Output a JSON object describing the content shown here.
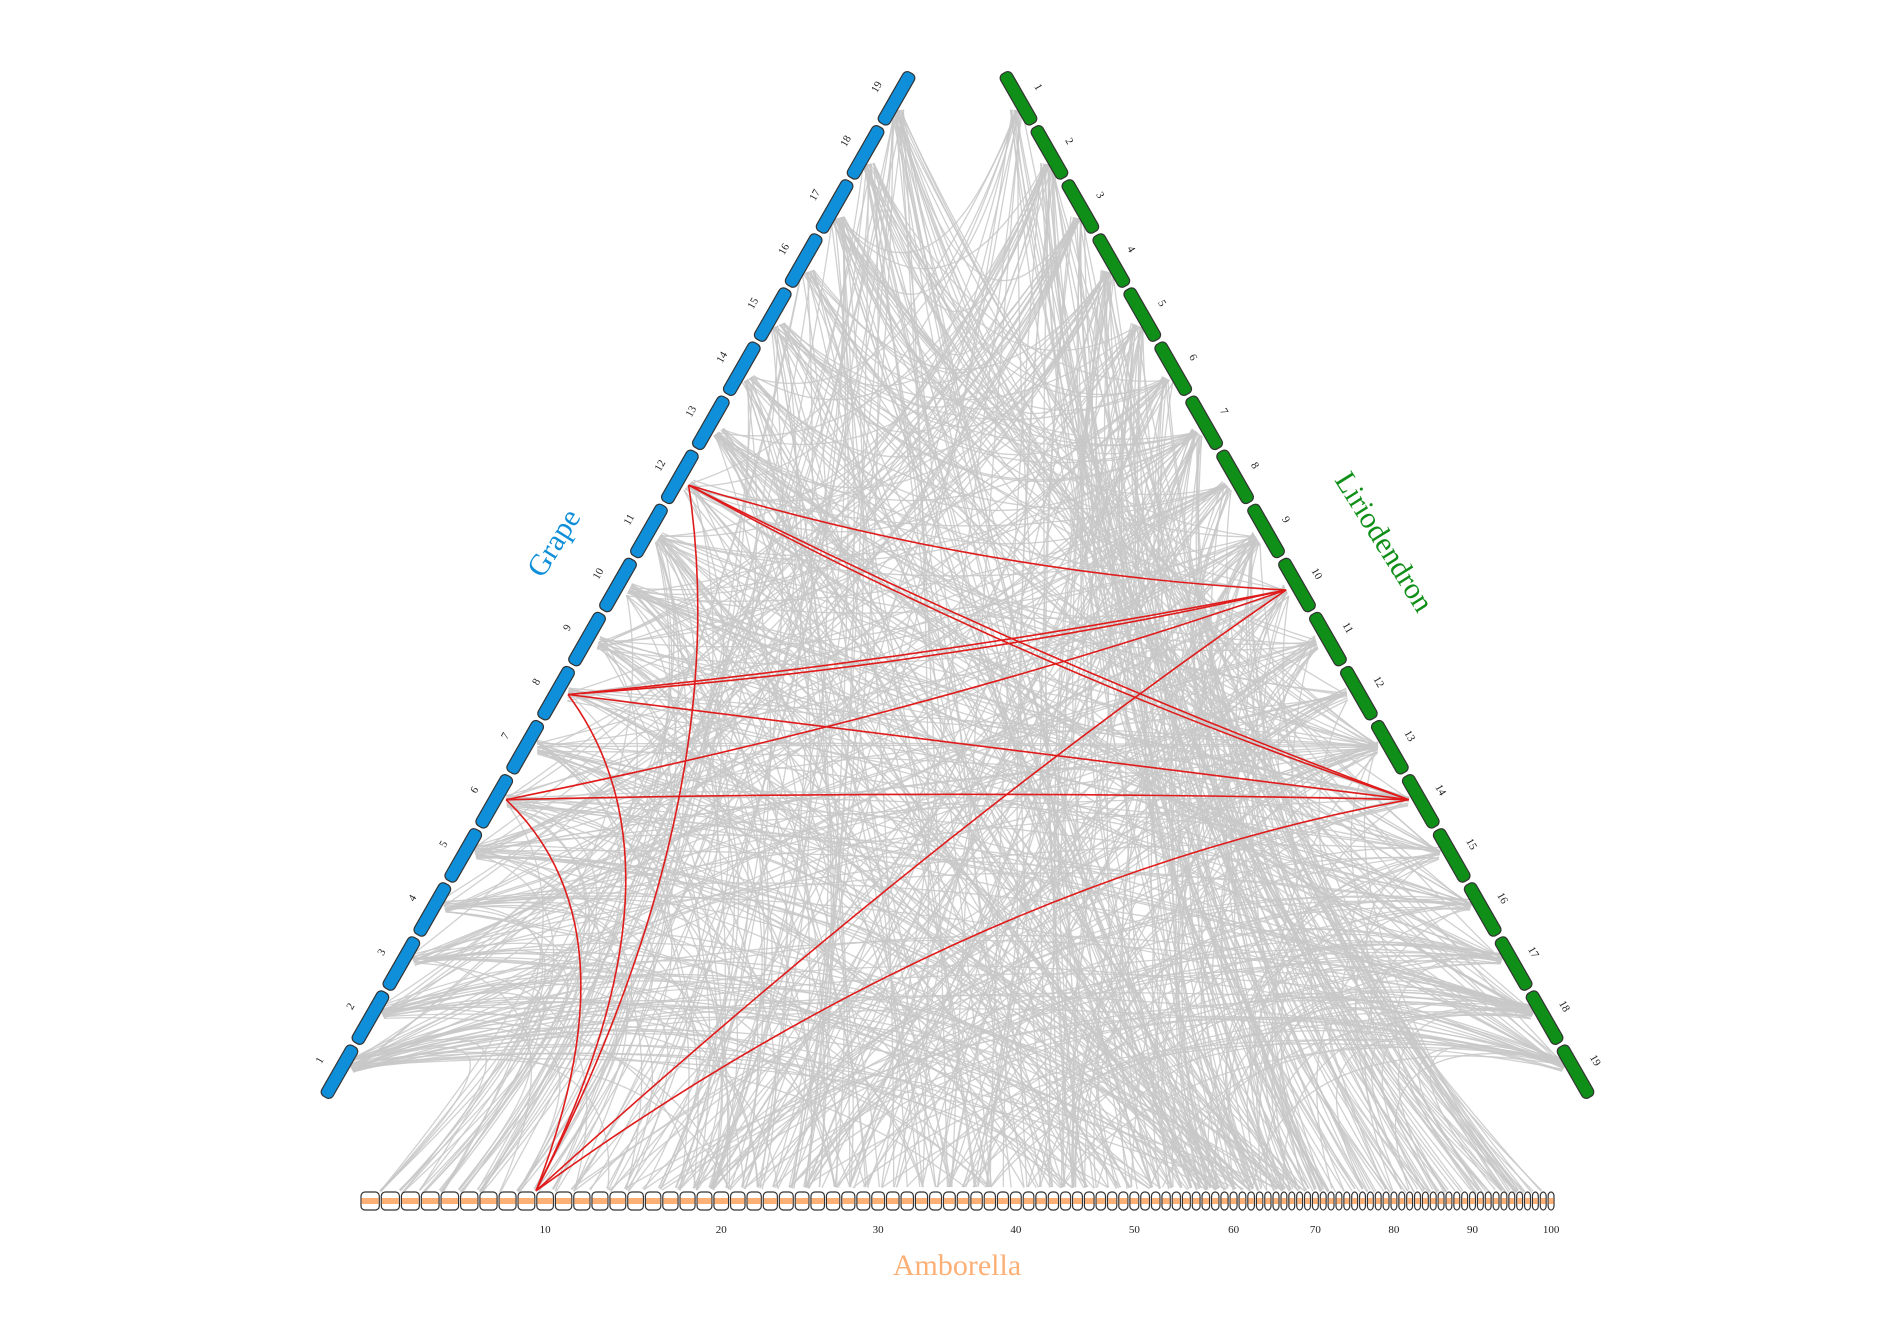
{
  "genomes": {
    "grape": {
      "label": "Grape",
      "color": "#0f8fd9",
      "chromosomes": [
        "1",
        "2",
        "3",
        "4",
        "5",
        "6",
        "7",
        "8",
        "9",
        "10",
        "11",
        "12",
        "13",
        "14",
        "15",
        "16",
        "17",
        "18",
        "19"
      ]
    },
    "liriodendron": {
      "label": "Liriodendron",
      "color": "#0f8f17",
      "chromosomes": [
        "1",
        "2",
        "3",
        "4",
        "5",
        "6",
        "7",
        "8",
        "9",
        "10",
        "11",
        "12",
        "13",
        "14",
        "15",
        "16",
        "17",
        "18",
        "19"
      ]
    },
    "amborella": {
      "label": "Amborella",
      "color": "#fcb075",
      "chromosome_count": 100,
      "tick_labels": [
        "10",
        "20",
        "30",
        "40",
        "50",
        "60",
        "70",
        "80",
        "90",
        "100"
      ]
    }
  },
  "colors": {
    "background_links": "#c8c8c8",
    "highlight_links": "#e01b1b"
  },
  "highlighted_links": [
    {
      "from": [
        "grape",
        "8"
      ],
      "to": [
        "liriodendron",
        "10"
      ]
    },
    {
      "from": [
        "grape",
        "8"
      ],
      "to": [
        "liriodendron",
        "10"
      ]
    },
    {
      "from": [
        "grape",
        "8"
      ],
      "to": [
        "amborella",
        "9"
      ]
    },
    {
      "from": [
        "grape",
        "8"
      ],
      "to": [
        "liriodendron",
        "14"
      ]
    },
    {
      "from": [
        "grape",
        "12"
      ],
      "to": [
        "liriodendron",
        "10"
      ]
    },
    {
      "from": [
        "grape",
        "12"
      ],
      "to": [
        "liriodendron",
        "14"
      ]
    },
    {
      "from": [
        "grape",
        "12"
      ],
      "to": [
        "amborella",
        "9"
      ]
    },
    {
      "from": [
        "grape",
        "6"
      ],
      "to": [
        "liriodendron",
        "10"
      ]
    },
    {
      "from": [
        "grape",
        "6"
      ],
      "to": [
        "liriodendron",
        "14"
      ]
    },
    {
      "from": [
        "grape",
        "6"
      ],
      "to": [
        "amborella",
        "9"
      ]
    },
    {
      "from": [
        "liriodendron",
        "10"
      ],
      "to": [
        "amborella",
        "9"
      ]
    },
    {
      "from": [
        "liriodendron",
        "14"
      ],
      "to": [
        "amborella",
        "9"
      ]
    },
    {
      "from": [
        "liriodendron",
        "14"
      ],
      "to": [
        "grape",
        "12"
      ]
    }
  ]
}
